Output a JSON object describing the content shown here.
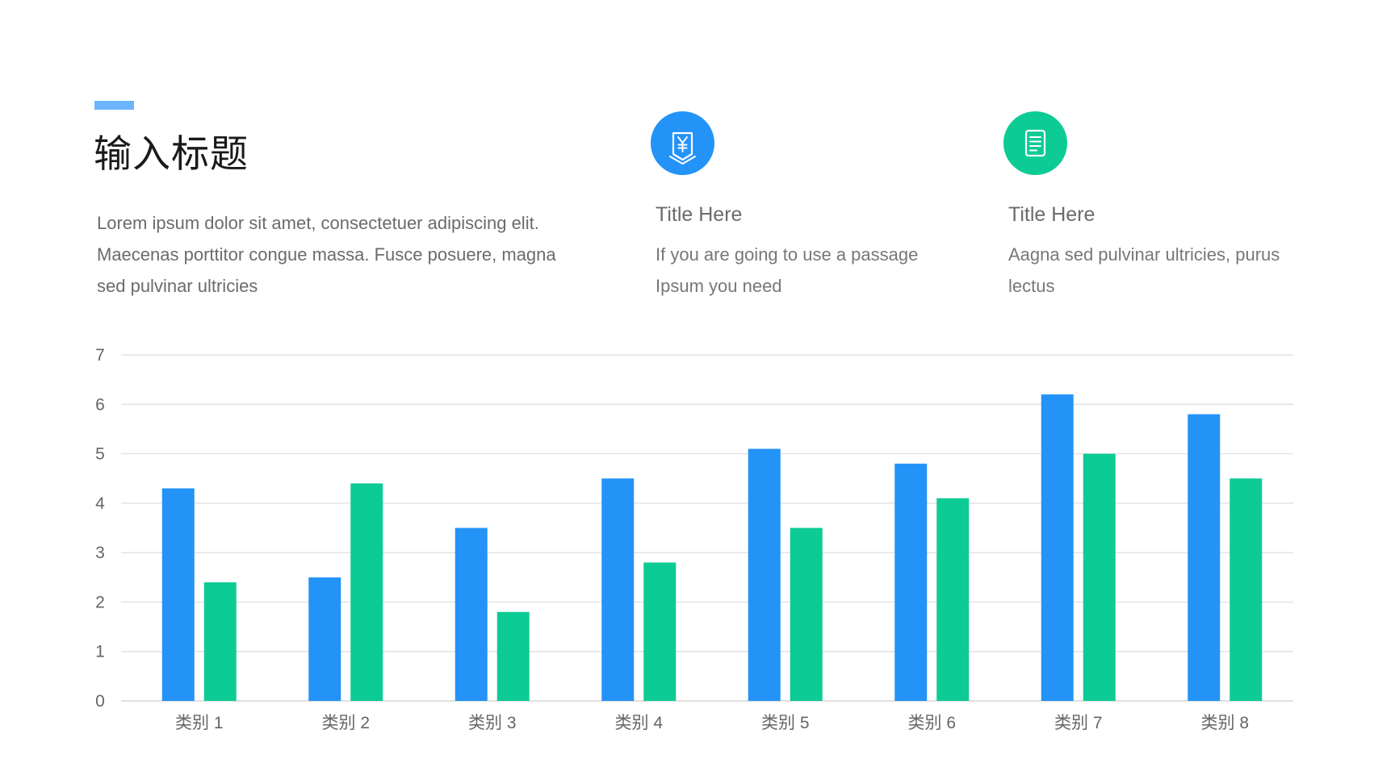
{
  "header": {
    "title": "输入标题",
    "intro": "Lorem ipsum dolor sit amet, consectetuer adipiscing elit. Maecenas porttitor congue massa. Fusce posuere, magna sed pulvinar ultricies"
  },
  "features": [
    {
      "icon": "receipt-yen-icon",
      "color": "#2493f7",
      "title": "Title Here",
      "text": "If you are going to use a passage Ipsum  you need"
    },
    {
      "icon": "document-icon",
      "color": "#0dcb95",
      "title": "Title Here",
      "text": "Aagna sed pulvinar ultricies, purus lectus"
    }
  ],
  "chart_data": {
    "type": "bar",
    "categories": [
      "类别 1",
      "类别 2",
      "类别 3",
      "类别 4",
      "类别 5",
      "类别 6",
      "类别 7",
      "类别 8"
    ],
    "series": [
      {
        "color": "#2493f7",
        "values": [
          4.3,
          2.5,
          3.5,
          4.5,
          5.1,
          4.8,
          6.2,
          5.8
        ]
      },
      {
        "color": "#0dcb95",
        "values": [
          2.4,
          4.4,
          1.8,
          2.8,
          3.5,
          4.1,
          5.0,
          4.5
        ]
      }
    ],
    "ylim": [
      0,
      7
    ],
    "yticks": [
      "0",
      "1",
      "2",
      "3",
      "4",
      "5",
      "6",
      "7"
    ],
    "grid": true,
    "legend": "none"
  }
}
